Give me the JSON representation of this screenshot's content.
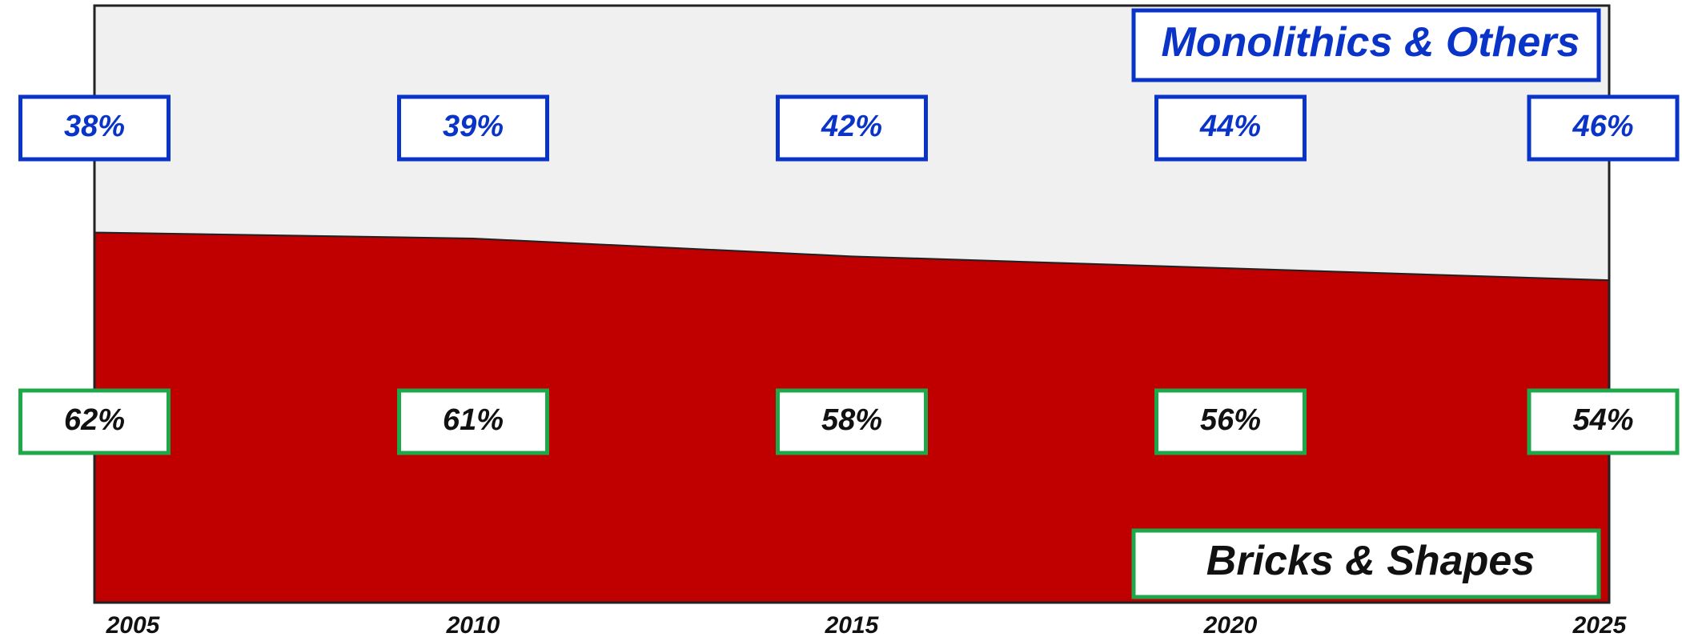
{
  "chart_data": {
    "type": "stacked_area",
    "categories": [
      "2005",
      "2010",
      "2015",
      "2020",
      "2025"
    ],
    "series": [
      {
        "name": "Bricks & Shapes",
        "color": "#c00000",
        "label_color": "#111111",
        "box_color": "#1fa84a",
        "values": [
          62,
          61,
          58,
          56,
          54
        ],
        "value_labels": [
          "62%",
          "61%",
          "58%",
          "56%",
          "54%"
        ]
      },
      {
        "name": "Monolithics & Others",
        "color": "#f0f0f0",
        "label_color": "#0a33c8",
        "box_color": "#0a33c8",
        "values": [
          38,
          39,
          42,
          44,
          46
        ],
        "value_labels": [
          "38%",
          "39%",
          "42%",
          "44%",
          "46%"
        ]
      }
    ],
    "ylim": [
      0,
      100
    ]
  }
}
